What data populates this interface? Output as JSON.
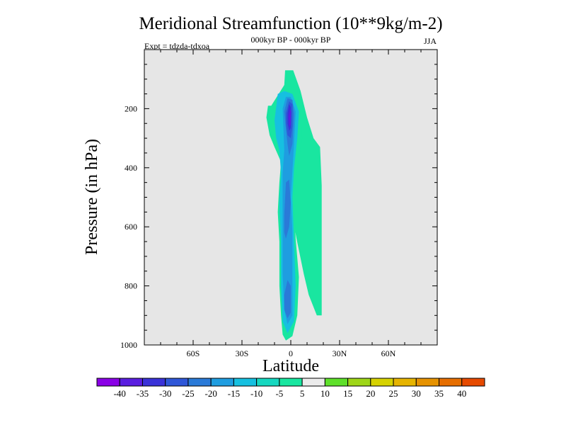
{
  "chart_data": {
    "type": "contour",
    "title": "Meridional Streamfunction (10**9kg/m-2)",
    "subtitle_center": "000kyr BP - 000kyr BP",
    "subtitle_left": "Expt = tdzda-tdxoa",
    "season": "JJA",
    "xlabel": "Latitude",
    "ylabel": "Pressure (in hPa)",
    "xlim": [
      -90,
      90
    ],
    "ylim": [
      1000,
      0
    ],
    "xticks": [
      {
        "value": -60,
        "label": "60S"
      },
      {
        "value": -30,
        "label": "30S"
      },
      {
        "value": 0,
        "label": "0"
      },
      {
        "value": 30,
        "label": "30N"
      },
      {
        "value": 60,
        "label": "60N"
      }
    ],
    "yticks": [
      {
        "value": 200,
        "label": "200"
      },
      {
        "value": 400,
        "label": "400"
      },
      {
        "value": 600,
        "label": "600"
      },
      {
        "value": 800,
        "label": "800"
      },
      {
        "value": 1000,
        "label": "1000"
      }
    ],
    "background_color": "#e6e6e6",
    "colorbar": {
      "labels": [
        "-40",
        "-35",
        "-30",
        "-25",
        "-20",
        "-15",
        "-10",
        "-5",
        "5",
        "10",
        "15",
        "20",
        "25",
        "30",
        "35",
        "40"
      ],
      "colors": [
        "#8a00e6",
        "#5a1ee0",
        "#3a32d8",
        "#2f57d8",
        "#2a7ad8",
        "#1f9de0",
        "#16c0e0",
        "#16d8c0",
        "#19e6a0",
        "#ebebeb",
        "#5ee02a",
        "#9ed618",
        "#d6d200",
        "#e6b400",
        "#e69200",
        "#e66e00",
        "#e64a00"
      ]
    },
    "regions": [
      {
        "level": -5,
        "color": "#19e6a0",
        "points": [
          [
            -3.5,
            70
          ],
          [
            1.5,
            70
          ],
          [
            6,
            140
          ],
          [
            10,
            230
          ],
          [
            14,
            300
          ],
          [
            18,
            330
          ],
          [
            19,
            460
          ],
          [
            19,
            900
          ],
          [
            16,
            900
          ],
          [
            11,
            830
          ],
          [
            8,
            760
          ],
          [
            3.5,
            640
          ],
          [
            1,
            560
          ],
          [
            -1,
            440
          ],
          [
            -2,
            350
          ],
          [
            -3,
            260
          ],
          [
            -4,
            190
          ],
          [
            -4,
            120
          ]
        ]
      },
      {
        "level": -5,
        "color": "#19e6a0",
        "points": [
          [
            -12,
            190
          ],
          [
            -4,
            120
          ],
          [
            4,
            135
          ],
          [
            6,
            220
          ],
          [
            7,
            300
          ],
          [
            4,
            400
          ],
          [
            2,
            500
          ],
          [
            3,
            640
          ],
          [
            5,
            770
          ],
          [
            4,
            900
          ],
          [
            1,
            970
          ],
          [
            -3,
            985
          ],
          [
            -5,
            965
          ],
          [
            -6,
            900
          ],
          [
            -7,
            800
          ],
          [
            -7,
            650
          ],
          [
            -8,
            550
          ],
          [
            -7,
            450
          ],
          [
            -6,
            380
          ],
          [
            -10,
            330
          ],
          [
            -13,
            290
          ],
          [
            -15,
            230
          ],
          [
            -14,
            190
          ]
        ]
      },
      {
        "level": -10,
        "color": "#16c0e0",
        "points": [
          [
            -10,
            240
          ],
          [
            -8,
            150
          ],
          [
            -4,
            140
          ],
          [
            1,
            150
          ],
          [
            5,
            210
          ],
          [
            4,
            300
          ],
          [
            2,
            400
          ],
          [
            1,
            500
          ],
          [
            2,
            650
          ],
          [
            3,
            800
          ],
          [
            2,
            920
          ],
          [
            -2,
            960
          ],
          [
            -5,
            920
          ],
          [
            -6,
            800
          ],
          [
            -6,
            650
          ],
          [
            -7,
            520
          ],
          [
            -6,
            420
          ],
          [
            -7,
            340
          ],
          [
            -9,
            300
          ]
        ]
      },
      {
        "level": -15,
        "color": "#1f9de0",
        "points": [
          [
            -5,
            200
          ],
          [
            -3,
            160
          ],
          [
            0,
            160
          ],
          [
            3,
            210
          ],
          [
            2,
            320
          ],
          [
            1,
            410
          ],
          [
            0,
            500
          ],
          [
            1,
            620
          ],
          [
            1,
            720
          ],
          [
            1,
            900
          ],
          [
            -2,
            930
          ],
          [
            -4,
            880
          ],
          [
            -5,
            760
          ],
          [
            -5,
            620
          ],
          [
            -5,
            520
          ],
          [
            -5,
            420
          ],
          [
            -4,
            340
          ]
        ]
      },
      {
        "level": -20,
        "color": "#2a7ad8",
        "points": [
          [
            -4,
            210
          ],
          [
            -2,
            165
          ],
          [
            1,
            170
          ],
          [
            2,
            220
          ],
          [
            1,
            320
          ],
          [
            -1,
            360
          ],
          [
            -2,
            320
          ],
          [
            -3,
            270
          ]
        ]
      },
      {
        "level": -20,
        "color": "#2a7ad8",
        "points": [
          [
            -4,
            560
          ],
          [
            -3,
            450
          ],
          [
            -1,
            440
          ],
          [
            0,
            520
          ],
          [
            -1,
            600
          ],
          [
            -3,
            640
          ],
          [
            -4,
            620
          ]
        ]
      },
      {
        "level": -20,
        "color": "#2a7ad8",
        "points": [
          [
            -4,
            830
          ],
          [
            -2,
            780
          ],
          [
            0,
            800
          ],
          [
            0,
            890
          ],
          [
            -2,
            910
          ],
          [
            -4,
            880
          ]
        ]
      },
      {
        "level": -25,
        "color": "#2f57d8",
        "points": [
          [
            -3,
            215
          ],
          [
            -1,
            175
          ],
          [
            1,
            185
          ],
          [
            1,
            260
          ],
          [
            0,
            300
          ],
          [
            -2,
            290
          ],
          [
            -3,
            250
          ]
        ]
      },
      {
        "level": -30,
        "color": "#3a32d8",
        "points": [
          [
            -2,
            215
          ],
          [
            -1,
            185
          ],
          [
            0,
            195
          ],
          [
            0,
            265
          ],
          [
            -1,
            275
          ],
          [
            -2,
            250
          ]
        ]
      },
      {
        "level": -35,
        "color": "#5a1ee0",
        "points": [
          [
            -1.5,
            225
          ],
          [
            -0.5,
            200
          ],
          [
            0.2,
            210
          ],
          [
            0,
            255
          ],
          [
            -1,
            260
          ]
        ]
      }
    ]
  }
}
